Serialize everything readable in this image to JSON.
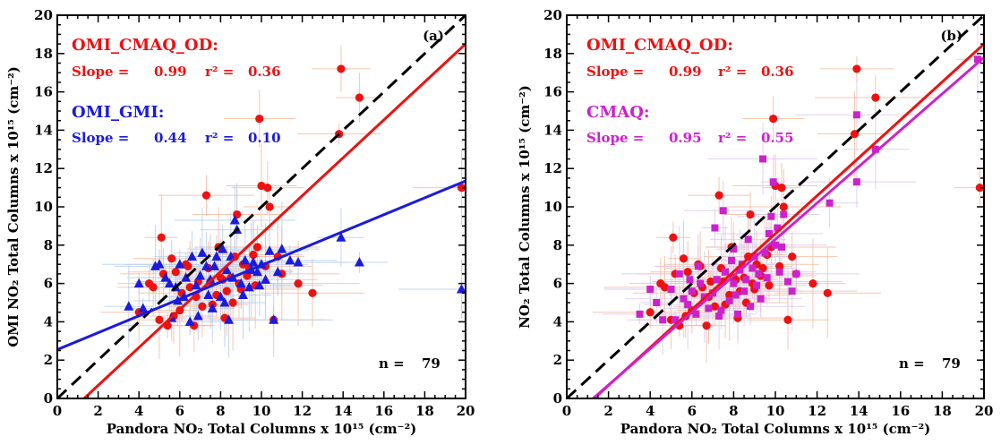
{
  "chart_data": [
    {
      "type": "scatter",
      "panel_label": "(a)",
      "xlabel": "Pandora NO₂ Total Columns x 10¹⁵ (cm⁻²)",
      "ylabel": "OMI NO₂ Total Columns x 10¹⁵ (cm⁻²)",
      "xlim": [
        0,
        20
      ],
      "ylim": [
        0,
        20
      ],
      "xticks": [
        0,
        2,
        4,
        6,
        8,
        10,
        12,
        14,
        16,
        18,
        20
      ],
      "yticks": [
        0,
        2,
        4,
        6,
        8,
        10,
        12,
        14,
        16,
        18,
        20
      ],
      "n_label": "n =",
      "n_value": "79",
      "one_to_one": true,
      "series": [
        {
          "name": "OMI_CMAQ_OD:",
          "color": "#ee1111",
          "marker": "circle",
          "errcolor": "#f5b89a",
          "slope_label": "Slope =",
          "slope": "0.99",
          "r2_label": "r² =",
          "r2": "0.36",
          "fit": {
            "slope": 0.99,
            "intercept": -1.3
          },
          "points": [
            [
              4.0,
              4.5
            ],
            [
              4.5,
              6.0
            ],
            [
              4.7,
              5.8
            ],
            [
              5.1,
              8.4
            ],
            [
              5.2,
              6.5
            ],
            [
              5.0,
              4.1
            ],
            [
              5.4,
              3.8
            ],
            [
              5.6,
              7.3
            ],
            [
              5.8,
              6.6
            ],
            [
              6.1,
              5.5
            ],
            [
              6.3,
              7.0
            ],
            [
              6.5,
              5.8
            ],
            [
              6.7,
              3.8
            ],
            [
              6.9,
              6.1
            ],
            [
              7.1,
              4.8
            ],
            [
              7.3,
              10.6
            ],
            [
              7.5,
              6.1
            ],
            [
              7.6,
              4.9
            ],
            [
              7.8,
              5.4
            ],
            [
              8.0,
              6.3
            ],
            [
              8.2,
              4.2
            ],
            [
              8.3,
              5.6
            ],
            [
              8.5,
              6.3
            ],
            [
              8.7,
              7.4
            ],
            [
              8.8,
              9.6
            ],
            [
              8.9,
              6.0
            ],
            [
              9.1,
              7.0
            ],
            [
              9.3,
              6.4
            ],
            [
              9.4,
              6.8
            ],
            [
              9.6,
              7.5
            ],
            [
              9.8,
              7.9
            ],
            [
              9.9,
              14.6
            ],
            [
              10.0,
              11.1
            ],
            [
              10.3,
              11.0
            ],
            [
              10.4,
              10.0
            ],
            [
              10.6,
              4.1
            ],
            [
              10.8,
              7.4
            ],
            [
              11.0,
              6.5
            ],
            [
              11.8,
              6.0
            ],
            [
              12.5,
              5.5
            ],
            [
              13.8,
              13.8
            ],
            [
              13.9,
              17.2
            ],
            [
              14.8,
              15.7
            ],
            [
              19.8,
              11.0
            ],
            [
              6.0,
              4.6
            ],
            [
              6.8,
              5.3
            ],
            [
              7.4,
              6.8
            ],
            [
              8.6,
              5.0
            ],
            [
              9.7,
              5.9
            ],
            [
              5.7,
              4.3
            ],
            [
              7.9,
              7.9
            ],
            [
              9.0,
              5.7
            ],
            [
              6.4,
              6.9
            ],
            [
              8.1,
              6.2
            ],
            [
              10.2,
              6.9
            ]
          ]
        },
        {
          "name": "OMI_GMI:",
          "color": "#1b1bdd",
          "marker": "triangle",
          "errcolor": "#b4cdee",
          "slope_label": "Slope =",
          "slope": "0.44",
          "r2_label": "r² =",
          "r2": "0.10",
          "fit": {
            "slope": 0.44,
            "intercept": 2.55
          },
          "points": [
            [
              3.5,
              4.8
            ],
            [
              4.0,
              6.0
            ],
            [
              4.2,
              4.7
            ],
            [
              4.8,
              6.9
            ],
            [
              5.0,
              7.0
            ],
            [
              5.3,
              6.3
            ],
            [
              5.5,
              6.0
            ],
            [
              5.6,
              4.2
            ],
            [
              5.8,
              5.8
            ],
            [
              6.0,
              7.0
            ],
            [
              6.2,
              5.3
            ],
            [
              6.3,
              6.3
            ],
            [
              6.5,
              4.0
            ],
            [
              6.6,
              7.4
            ],
            [
              6.8,
              5.9
            ],
            [
              7.0,
              6.4
            ],
            [
              7.1,
              7.6
            ],
            [
              7.3,
              6.9
            ],
            [
              7.4,
              5.4
            ],
            [
              7.5,
              6.2
            ],
            [
              7.7,
              6.9
            ],
            [
              7.8,
              7.4
            ],
            [
              8.0,
              5.3
            ],
            [
              8.1,
              7.8
            ],
            [
              8.2,
              5.0
            ],
            [
              8.3,
              6.7
            ],
            [
              8.5,
              7.4
            ],
            [
              8.6,
              6.3
            ],
            [
              8.7,
              9.3
            ],
            [
              8.8,
              8.8
            ],
            [
              9.0,
              6.0
            ],
            [
              9.2,
              7.2
            ],
            [
              9.4,
              5.8
            ],
            [
              9.5,
              6.7
            ],
            [
              9.6,
              7.1
            ],
            [
              9.8,
              6.6
            ],
            [
              9.9,
              5.9
            ],
            [
              10.0,
              7.0
            ],
            [
              10.2,
              6.2
            ],
            [
              10.4,
              7.7
            ],
            [
              10.6,
              4.1
            ],
            [
              10.8,
              6.6
            ],
            [
              11.0,
              7.8
            ],
            [
              11.4,
              7.2
            ],
            [
              11.8,
              7.1
            ],
            [
              13.9,
              8.4
            ],
            [
              14.8,
              7.1
            ],
            [
              19.8,
              5.7
            ],
            [
              6.9,
              4.3
            ],
            [
              7.6,
              4.7
            ],
            [
              8.4,
              4.1
            ],
            [
              9.1,
              5.4
            ],
            [
              5.9,
              5.1
            ]
          ]
        }
      ]
    },
    {
      "type": "scatter",
      "panel_label": "(b)",
      "xlabel": "Pandora NO₂ Total Columns x 10¹⁵ (cm⁻²)",
      "ylabel": "NO₂ Total Columns x 10¹⁵ (cm⁻²)",
      "xlim": [
        0,
        20
      ],
      "ylim": [
        0,
        20
      ],
      "xticks": [
        0,
        2,
        4,
        6,
        8,
        10,
        12,
        14,
        16,
        18,
        20
      ],
      "yticks": [
        0,
        2,
        4,
        6,
        8,
        10,
        12,
        14,
        16,
        18,
        20
      ],
      "n_label": "n =",
      "n_value": "79",
      "one_to_one": true,
      "series": [
        {
          "name": "OMI_CMAQ_OD:",
          "color": "#ee1111",
          "marker": "circle",
          "errcolor": "#f5b89a",
          "slope_label": "Slope =",
          "slope": "0.99",
          "r2_label": "r² =",
          "r2": "0.36",
          "fit": {
            "slope": 0.99,
            "intercept": -1.3
          },
          "points": [
            [
              4.0,
              4.5
            ],
            [
              4.5,
              6.0
            ],
            [
              4.7,
              5.8
            ],
            [
              5.1,
              8.4
            ],
            [
              5.2,
              6.5
            ],
            [
              5.0,
              4.1
            ],
            [
              5.4,
              3.8
            ],
            [
              5.6,
              7.3
            ],
            [
              5.8,
              6.6
            ],
            [
              6.1,
              5.5
            ],
            [
              6.3,
              7.0
            ],
            [
              6.5,
              5.8
            ],
            [
              6.7,
              3.8
            ],
            [
              6.9,
              6.1
            ],
            [
              7.1,
              4.8
            ],
            [
              7.3,
              10.6
            ],
            [
              7.5,
              6.1
            ],
            [
              7.6,
              4.9
            ],
            [
              7.8,
              5.4
            ],
            [
              8.0,
              6.3
            ],
            [
              8.2,
              4.2
            ],
            [
              8.3,
              5.6
            ],
            [
              8.5,
              6.3
            ],
            [
              8.7,
              7.4
            ],
            [
              8.8,
              9.6
            ],
            [
              8.9,
              6.0
            ],
            [
              9.1,
              7.0
            ],
            [
              9.3,
              6.4
            ],
            [
              9.4,
              6.8
            ],
            [
              9.6,
              7.5
            ],
            [
              9.8,
              7.9
            ],
            [
              9.9,
              14.6
            ],
            [
              10.0,
              11.1
            ],
            [
              10.3,
              11.0
            ],
            [
              10.4,
              10.0
            ],
            [
              10.6,
              4.1
            ],
            [
              10.8,
              7.4
            ],
            [
              11.0,
              6.5
            ],
            [
              11.8,
              6.0
            ],
            [
              12.5,
              5.5
            ],
            [
              13.8,
              13.8
            ],
            [
              13.9,
              17.2
            ],
            [
              14.8,
              15.7
            ],
            [
              19.8,
              11.0
            ],
            [
              6.0,
              4.6
            ],
            [
              6.8,
              5.3
            ],
            [
              7.4,
              6.8
            ],
            [
              8.6,
              5.0
            ],
            [
              9.7,
              5.9
            ],
            [
              5.7,
              4.3
            ],
            [
              7.9,
              7.9
            ],
            [
              9.0,
              5.7
            ],
            [
              6.4,
              6.9
            ],
            [
              8.1,
              6.2
            ],
            [
              10.2,
              6.9
            ]
          ]
        },
        {
          "name": "CMAQ:",
          "color": "#cc22cc",
          "marker": "square",
          "errcolor": "#d9c6ee",
          "slope_label": "Slope =",
          "slope": "0.95",
          "r2_label": "r² =",
          "r2": "0.55",
          "fit": {
            "slope": 0.95,
            "intercept": -1.2
          },
          "points": [
            [
              3.5,
              4.4
            ],
            [
              4.0,
              5.7
            ],
            [
              4.3,
              5.0
            ],
            [
              4.6,
              4.1
            ],
            [
              5.0,
              5.7
            ],
            [
              5.2,
              4.1
            ],
            [
              5.4,
              6.5
            ],
            [
              5.6,
              5.2
            ],
            [
              5.8,
              4.9
            ],
            [
              6.0,
              5.6
            ],
            [
              6.2,
              4.4
            ],
            [
              6.4,
              6.0
            ],
            [
              6.6,
              5.3
            ],
            [
              6.8,
              4.7
            ],
            [
              7.0,
              5.5
            ],
            [
              7.1,
              8.9
            ],
            [
              7.2,
              6.2
            ],
            [
              7.4,
              4.6
            ],
            [
              7.5,
              9.8
            ],
            [
              7.6,
              6.6
            ],
            [
              7.8,
              5.1
            ],
            [
              7.9,
              7.2
            ],
            [
              8.0,
              6.0
            ],
            [
              8.1,
              5.4
            ],
            [
              8.2,
              4.4
            ],
            [
              8.3,
              6.7
            ],
            [
              8.4,
              7.0
            ],
            [
              8.5,
              5.6
            ],
            [
              8.6,
              6.2
            ],
            [
              8.7,
              8.3
            ],
            [
              8.8,
              4.8
            ],
            [
              8.9,
              6.8
            ],
            [
              9.0,
              7.4
            ],
            [
              9.1,
              5.9
            ],
            [
              9.2,
              6.5
            ],
            [
              9.4,
              12.5
            ],
            [
              9.5,
              7.6
            ],
            [
              9.6,
              6.3
            ],
            [
              9.7,
              8.6
            ],
            [
              9.8,
              9.5
            ],
            [
              9.9,
              11.3
            ],
            [
              10.0,
              8.0
            ],
            [
              10.1,
              8.9
            ],
            [
              10.2,
              6.6
            ],
            [
              10.3,
              7.9
            ],
            [
              10.4,
              9.6
            ],
            [
              10.6,
              6.1
            ],
            [
              10.8,
              5.6
            ],
            [
              11.0,
              6.5
            ],
            [
              12.6,
              10.2
            ],
            [
              13.9,
              14.8
            ],
            [
              13.9,
              11.3
            ],
            [
              14.8,
              13.0
            ],
            [
              19.7,
              17.7
            ],
            [
              6.3,
              6.9
            ],
            [
              7.3,
              4.3
            ],
            [
              8.0,
              7.8
            ],
            [
              5.9,
              6.2
            ],
            [
              9.3,
              5.2
            ]
          ]
        }
      ]
    }
  ]
}
